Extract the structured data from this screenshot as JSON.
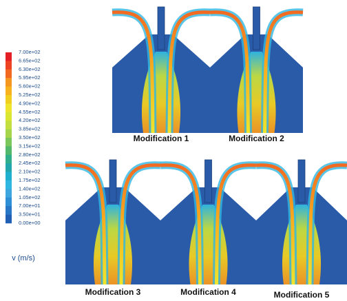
{
  "legend": {
    "labels": [
      "7.00e+02",
      "6.65e+02",
      "6.30e+02",
      "5.95e+02",
      "5.60e+02",
      "5.25e+02",
      "4.90e+02",
      "4.55e+02",
      "4.20e+02",
      "3.85e+02",
      "3.50e+02",
      "3.15e+02",
      "2.80e+02",
      "2.45e+02",
      "2.10e+02",
      "1.75e+02",
      "1.40e+02",
      "1.05e+02",
      "7.00e+01",
      "3.50e+01",
      "0.00e+00"
    ],
    "colors": [
      "#e41f26",
      "#ee4322",
      "#f26a21",
      "#f5961f",
      "#f7b21e",
      "#f2cf1f",
      "#eee52c",
      "#dbe633",
      "#c3de3f",
      "#a4d54b",
      "#7cc75c",
      "#52b86c",
      "#31ae8c",
      "#22a7ad",
      "#1fb0cf",
      "#2fb7e2",
      "#3ea6df",
      "#2f8fd6",
      "#2876c6",
      "#215fb5"
    ],
    "unit": "v (m/s)"
  },
  "panels": [
    {
      "caption": "Modification 1"
    },
    {
      "caption": "Modification 2"
    },
    {
      "caption": "Modification 3"
    },
    {
      "caption": "Modification 4"
    },
    {
      "caption": "Modification 5"
    }
  ]
}
